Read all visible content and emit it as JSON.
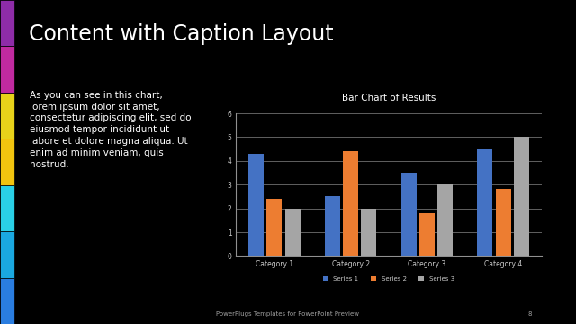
{
  "slide": {
    "title": "Content with Caption Layout",
    "caption_lines": [
      "As you can see in this chart,",
      "lorem ipsum dolor sit amet,",
      "consectetur adipiscing elit, sed do",
      "eiusmod tempor incididunt ut",
      "labore et dolore magna aliqua. Ut",
      "enim ad minim veniam, quis",
      "nostrud."
    ],
    "footer": "PowerPlugs Templates for PowerPoint Preview",
    "page": "8"
  },
  "chart_data": {
    "type": "bar",
    "title": "Bar Chart of Results",
    "categories": [
      "Category 1",
      "Category 2",
      "Category 3",
      "Category 4"
    ],
    "series": [
      {
        "name": "Series 1",
        "color": "#4472c4",
        "values": [
          4.3,
          2.5,
          3.5,
          4.5
        ]
      },
      {
        "name": "Series 2",
        "color": "#ed7d31",
        "values": [
          2.4,
          4.4,
          1.8,
          2.8
        ]
      },
      {
        "name": "Series 3",
        "color": "#a5a5a5",
        "values": [
          2.0,
          2.0,
          3.0,
          5.0
        ]
      }
    ],
    "ylim": [
      0,
      6
    ],
    "yticks": [
      0,
      1,
      2,
      3,
      4,
      5,
      6
    ],
    "grid": true,
    "legend": "lower center"
  }
}
